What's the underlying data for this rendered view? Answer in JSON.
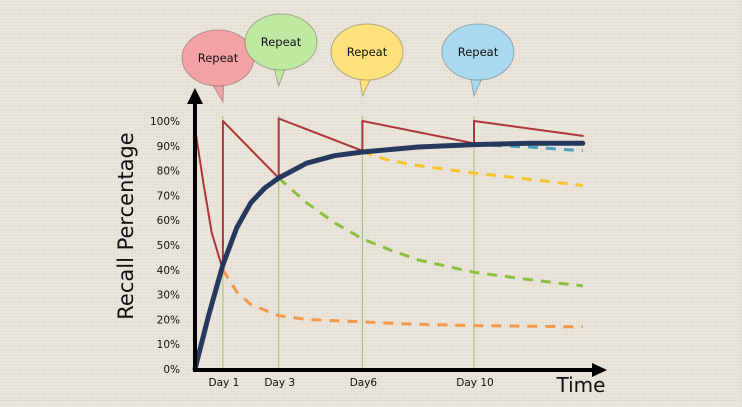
{
  "chart_data": {
    "type": "line",
    "xlabel": "Time",
    "ylabel": "Recall Percentage",
    "ylim": [
      0,
      100
    ],
    "xlim": [
      0,
      14
    ],
    "y_ticks": [
      {
        "value": 100,
        "label": "100%"
      },
      {
        "value": 90,
        "label": "90%"
      },
      {
        "value": 80,
        "label": "80%"
      },
      {
        "value": 70,
        "label": "70%"
      },
      {
        "value": 60,
        "label": "60%"
      },
      {
        "value": 50,
        "label": "50%"
      },
      {
        "value": 40,
        "label": "40%"
      },
      {
        "value": 30,
        "label": "30%"
      },
      {
        "value": 20,
        "label": "20%"
      },
      {
        "value": 10,
        "label": "10%"
      },
      {
        "value": 0,
        "label": "0%"
      }
    ],
    "x_ticks": [
      {
        "value": 1,
        "label": "Day 1"
      },
      {
        "value": 3,
        "label": "Day 3"
      },
      {
        "value": 6,
        "label": "Day6"
      },
      {
        "value": 10,
        "label": "Day 10"
      }
    ],
    "grid": false,
    "annotations": [
      {
        "day": 1,
        "text": "Repeat",
        "color": "#f4a2a6"
      },
      {
        "day": 3,
        "text": "Repeat",
        "color": "#bfe8a0"
      },
      {
        "day": 6,
        "text": "Repeat",
        "color": "#fde17a"
      },
      {
        "day": 10,
        "text": "Repeat",
        "color": "#a9d9ef"
      }
    ],
    "series": [
      {
        "id": "recall-with-repetition",
        "color": "#b0343a",
        "style": "solid",
        "points": [
          [
            0,
            97
          ],
          [
            0.3,
            75
          ],
          [
            0.6,
            55
          ],
          [
            1,
            40
          ],
          [
            1,
            100
          ],
          [
            3,
            77
          ],
          [
            3,
            101
          ],
          [
            6,
            88
          ],
          [
            6,
            100
          ],
          [
            10,
            91
          ],
          [
            10,
            100
          ],
          [
            13.9,
            94
          ]
        ]
      },
      {
        "id": "retention-trend",
        "color": "#27385f",
        "style": "solid-thick",
        "points": [
          [
            0,
            0
          ],
          [
            0.5,
            22
          ],
          [
            1,
            42
          ],
          [
            1.5,
            57
          ],
          [
            2,
            67
          ],
          [
            2.5,
            73
          ],
          [
            3,
            77
          ],
          [
            4,
            83
          ],
          [
            5,
            86
          ],
          [
            6,
            87.5
          ],
          [
            8,
            89.5
          ],
          [
            10,
            90.5
          ],
          [
            12,
            91
          ],
          [
            13.9,
            91
          ]
        ]
      },
      {
        "id": "forgetting-after-day1",
        "color": "#f39a4a",
        "style": "dashed",
        "points": [
          [
            1,
            40
          ],
          [
            1.5,
            31
          ],
          [
            2,
            26
          ],
          [
            3,
            21.5
          ],
          [
            4,
            20
          ],
          [
            6,
            19
          ],
          [
            8,
            18
          ],
          [
            10,
            17.5
          ],
          [
            13.9,
            17
          ]
        ]
      },
      {
        "id": "forgetting-after-day3",
        "color": "#8cbf3f",
        "style": "dashed",
        "points": [
          [
            3,
            77
          ],
          [
            4,
            67
          ],
          [
            5,
            59
          ],
          [
            6,
            52.5
          ],
          [
            7,
            48
          ],
          [
            8,
            44
          ],
          [
            10,
            39
          ],
          [
            12,
            36
          ],
          [
            13.9,
            33.5
          ]
        ]
      },
      {
        "id": "forgetting-after-day6",
        "color": "#f5c52a",
        "style": "dashed",
        "points": [
          [
            6,
            87.5
          ],
          [
            7,
            84
          ],
          [
            8,
            82
          ],
          [
            10,
            79
          ],
          [
            12,
            76.5
          ],
          [
            13.9,
            74
          ]
        ]
      },
      {
        "id": "forgetting-after-day10",
        "color": "#4aa0bf",
        "style": "dashed",
        "points": [
          [
            10,
            90.5
          ],
          [
            12,
            89.5
          ],
          [
            13.9,
            88
          ]
        ]
      }
    ]
  }
}
